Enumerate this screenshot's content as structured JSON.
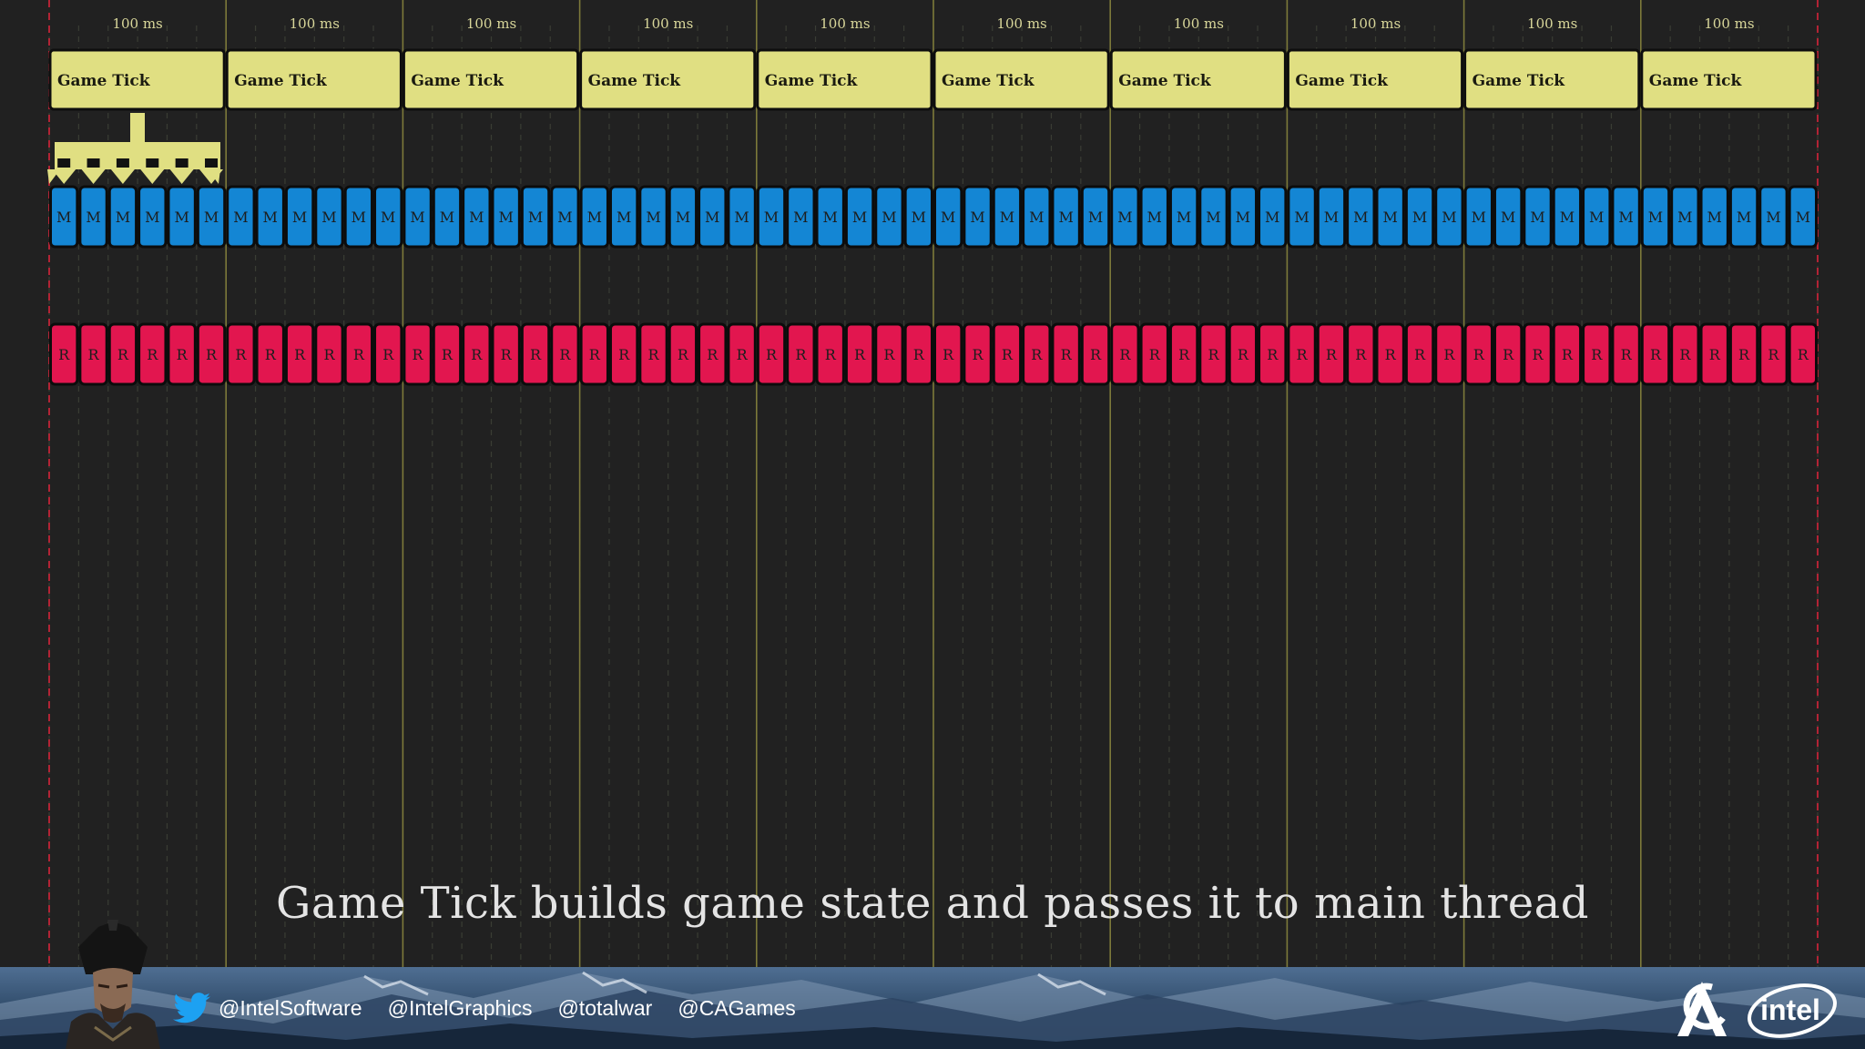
{
  "timeline": {
    "interval_label": "100 ms",
    "tick_label": "Game Tick",
    "tick_count": 10,
    "main_block_label": "M",
    "render_block_label": "R",
    "blocks_per_tick": 6,
    "colors": {
      "tick_fill": "#e0df82",
      "main_fill": "#1486d4",
      "render_fill": "#e2164f",
      "frame_line": "#d6243a",
      "tick_line": "#7d7a3a",
      "label_color": "#d9d79a"
    }
  },
  "caption": "Game Tick builds game state and passes it to main thread",
  "footer": {
    "social_icon": "twitter-icon",
    "handles": [
      "@IntelSoftware",
      "@IntelGraphics",
      "@totalwar",
      "@CAGames"
    ]
  }
}
